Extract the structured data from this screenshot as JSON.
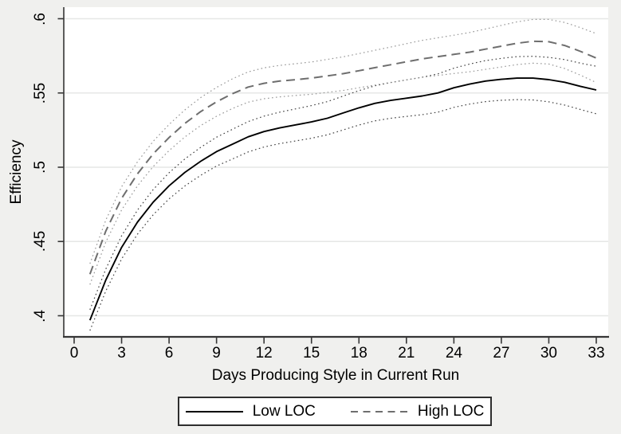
{
  "figure": {
    "background": "#f0f0ee",
    "plot_background": "#ffffff",
    "grid_color": "#e6e7e6",
    "axis_color": "#363636"
  },
  "chart_data": {
    "type": "line",
    "title": "",
    "xlabel": "Days Producing Style in Current Run",
    "ylabel": "Efficiency",
    "grid": "horizontal-only",
    "legend_position": "bottom-center",
    "x_axis": {
      "ticks": [
        0,
        3,
        6,
        9,
        12,
        15,
        18,
        21,
        24,
        27,
        30,
        33
      ],
      "range": [
        -0.65,
        33.75
      ]
    },
    "y_axis": {
      "ticks": [
        {
          "v": 0.4,
          "label": ".4"
        },
        {
          "v": 0.45,
          "label": ".45"
        },
        {
          "v": 0.5,
          "label": ".5"
        },
        {
          "v": 0.55,
          "label": ".55"
        },
        {
          "v": 0.6,
          "label": ".6"
        }
      ],
      "range": [
        0.386,
        0.608
      ]
    },
    "x": [
      1,
      2,
      3,
      4,
      5,
      6,
      7,
      8,
      9,
      10,
      11,
      12,
      13,
      14,
      15,
      16,
      17,
      18,
      19,
      20,
      21,
      22,
      23,
      24,
      25,
      26,
      27,
      28,
      29,
      30,
      31,
      32,
      33
    ],
    "series": [
      {
        "name": "Low LOC",
        "line_style": "solid",
        "color": "#000000",
        "ci_style": "dotted",
        "ci_color": "#3f3f3f",
        "values": [
          0.397,
          0.424,
          0.446,
          0.463,
          0.4765,
          0.4875,
          0.4965,
          0.504,
          0.5105,
          0.5155,
          0.5205,
          0.524,
          0.5265,
          0.5285,
          0.5305,
          0.533,
          0.5365,
          0.54,
          0.543,
          0.545,
          0.5465,
          0.548,
          0.55,
          0.5535,
          0.556,
          0.558,
          0.5592,
          0.56,
          0.56,
          0.559,
          0.5572,
          0.5545,
          0.552
        ],
        "ci_halfwidth": [
          0.007,
          0.0074,
          0.0078,
          0.0081,
          0.0085,
          0.0088,
          0.0091,
          0.0094,
          0.0097,
          0.01,
          0.0102,
          0.0104,
          0.0106,
          0.0108,
          0.011,
          0.0112,
          0.0114,
          0.0116,
          0.0118,
          0.012,
          0.0123,
          0.0126,
          0.0129,
          0.0132,
          0.0135,
          0.0138,
          0.0141,
          0.0145,
          0.0147,
          0.015,
          0.0153,
          0.0156,
          0.016
        ]
      },
      {
        "name": "High LOC",
        "line_style": "dashed",
        "color": "#6e6e6e",
        "ci_style": "dotted",
        "ci_color": "#969696",
        "values": [
          0.428,
          0.457,
          0.479,
          0.4955,
          0.509,
          0.52,
          0.5295,
          0.5375,
          0.544,
          0.5495,
          0.554,
          0.5565,
          0.558,
          0.559,
          0.56,
          0.5615,
          0.563,
          0.565,
          0.567,
          0.569,
          0.571,
          0.573,
          0.5745,
          0.576,
          0.5775,
          0.5795,
          0.5815,
          0.5835,
          0.5848,
          0.5845,
          0.582,
          0.578,
          0.5735
        ],
        "ci_halfwidth": [
          0.007,
          0.0074,
          0.0078,
          0.0081,
          0.0085,
          0.0088,
          0.0091,
          0.0094,
          0.0097,
          0.01,
          0.0102,
          0.0104,
          0.0106,
          0.0107,
          0.0109,
          0.0111,
          0.0113,
          0.0115,
          0.0117,
          0.0119,
          0.0122,
          0.0124,
          0.0127,
          0.0129,
          0.0132,
          0.0136,
          0.014,
          0.0144,
          0.0147,
          0.015,
          0.0155,
          0.016,
          0.0165
        ]
      }
    ],
    "legend": {
      "entries": [
        "Low LOC",
        "High LOC"
      ]
    }
  }
}
